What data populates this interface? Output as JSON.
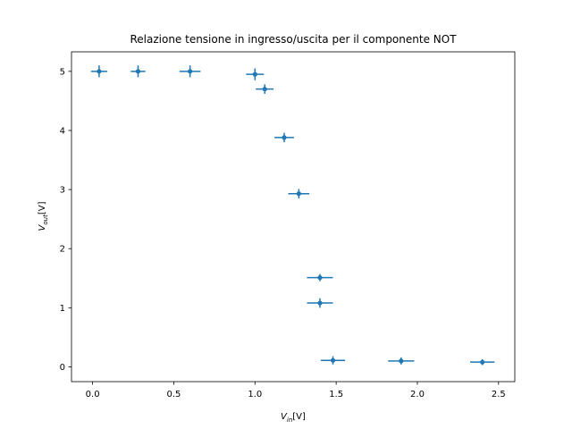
{
  "chart_data": {
    "type": "scatter",
    "title": "Relazione tensione in ingresso/uscita per il componente NOT",
    "xlabel": {
      "base": "V",
      "sub": "in",
      "unit": "[V]"
    },
    "ylabel": {
      "base": "V",
      "sub": "out",
      "unit": "[V]"
    },
    "xlim": [
      -0.13,
      2.6
    ],
    "ylim": [
      -0.25,
      5.33
    ],
    "xticks": [
      0.0,
      0.5,
      1.0,
      1.5,
      2.0,
      2.5
    ],
    "xtick_labels": [
      "0.0",
      "0.5",
      "1.0",
      "1.5",
      "2.0",
      "2.5"
    ],
    "yticks": [
      0,
      1,
      2,
      3,
      4,
      5
    ],
    "ytick_labels": [
      "0",
      "1",
      "2",
      "3",
      "4",
      "5"
    ],
    "grid": false,
    "color": "#1f77b4",
    "points": [
      {
        "x": 0.04,
        "y": 5.0,
        "xerr": 0.05,
        "yerr": 0.1
      },
      {
        "x": 0.28,
        "y": 5.0,
        "xerr": 0.045,
        "yerr": 0.1
      },
      {
        "x": 0.6,
        "y": 5.0,
        "xerr": 0.065,
        "yerr": 0.1
      },
      {
        "x": 1.0,
        "y": 4.95,
        "xerr": 0.055,
        "yerr": 0.1
      },
      {
        "x": 1.06,
        "y": 4.7,
        "xerr": 0.055,
        "yerr": 0.08
      },
      {
        "x": 1.18,
        "y": 3.88,
        "xerr": 0.06,
        "yerr": 0.08
      },
      {
        "x": 1.27,
        "y": 2.93,
        "xerr": 0.065,
        "yerr": 0.08
      },
      {
        "x": 1.4,
        "y": 1.51,
        "xerr": 0.08,
        "yerr": 0.06
      },
      {
        "x": 1.4,
        "y": 1.08,
        "xerr": 0.08,
        "yerr": 0.08
      },
      {
        "x": 1.48,
        "y": 0.11,
        "xerr": 0.075,
        "yerr": 0.07
      },
      {
        "x": 1.9,
        "y": 0.1,
        "xerr": 0.08,
        "yerr": 0.06
      },
      {
        "x": 2.4,
        "y": 0.08,
        "xerr": 0.075,
        "yerr": 0.05
      }
    ]
  }
}
